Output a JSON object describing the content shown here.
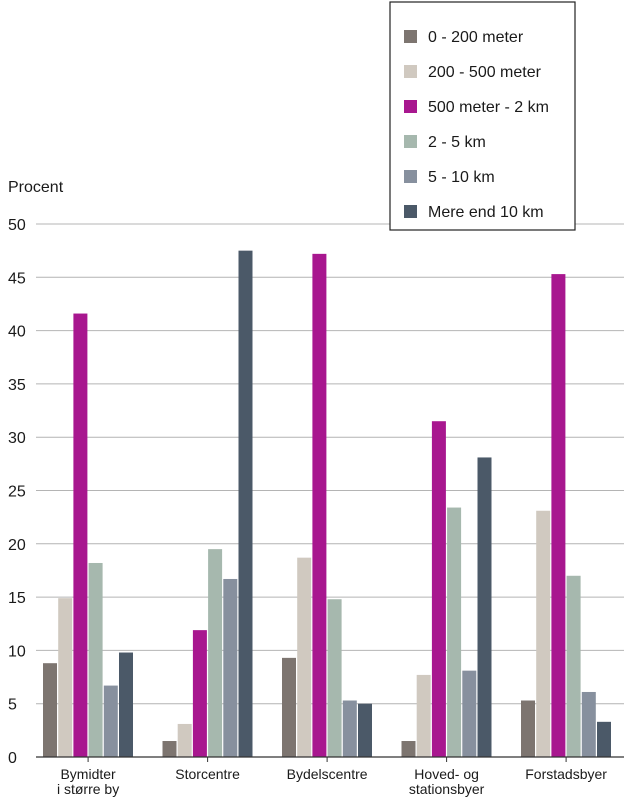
{
  "chart_data": {
    "type": "bar",
    "ylabel": "Procent",
    "ylim": [
      0,
      50
    ],
    "yticks": [
      0,
      5,
      10,
      15,
      20,
      25,
      30,
      35,
      40,
      45,
      50
    ],
    "grid": true,
    "legend_position": "top-right",
    "categories": [
      [
        "Bymidter",
        "i større by"
      ],
      [
        "Storcentre"
      ],
      [
        "Bydelscentre"
      ],
      [
        "Hoved- og",
        "stationsbyer"
      ],
      [
        "Forstadsbyer"
      ]
    ],
    "series": [
      {
        "name": "0 - 200 meter",
        "color": "#7d7570",
        "values": [
          8.8,
          1.5,
          9.3,
          1.5,
          5.3
        ]
      },
      {
        "name": "200 - 500 meter",
        "color": "#d0c9c0",
        "values": [
          14.9,
          3.1,
          18.7,
          7.7,
          23.1
        ]
      },
      {
        "name": "500 meter - 2 km",
        "color": "#a8178f",
        "values": [
          41.6,
          11.9,
          47.2,
          31.5,
          45.3
        ]
      },
      {
        "name": "2 - 5 km",
        "color": "#a6b8ae",
        "values": [
          18.2,
          19.5,
          14.8,
          23.4,
          17.0
        ]
      },
      {
        "name": "5 - 10 km",
        "color": "#87909e",
        "values": [
          6.7,
          16.7,
          5.3,
          8.1,
          6.1
        ]
      },
      {
        "name": "Mere end 10 km",
        "color": "#4b5968",
        "values": [
          9.8,
          47.5,
          5.0,
          28.1,
          3.3
        ]
      }
    ]
  }
}
